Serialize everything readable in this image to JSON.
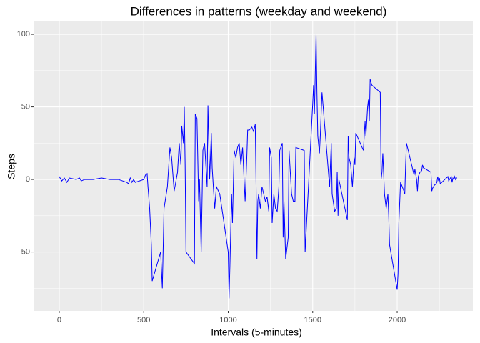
{
  "chart_data": {
    "type": "line",
    "title": "Differences in patterns (weekday and weekend)",
    "x_label": "Intervals (5-minutes)",
    "y_label": "Steps",
    "x": [
      0,
      15,
      30,
      45,
      60,
      100,
      120,
      130,
      150,
      200,
      250,
      300,
      350,
      400,
      410,
      420,
      430,
      440,
      450,
      500,
      510,
      520,
      525,
      535,
      545,
      550,
      600,
      610,
      620,
      640,
      655,
      665,
      680,
      700,
      710,
      720,
      725,
      735,
      740,
      745,
      750,
      800,
      805,
      815,
      825,
      830,
      840,
      850,
      860,
      875,
      880,
      890,
      900,
      905,
      920,
      930,
      950,
      1000,
      1005,
      1010,
      1020,
      1025,
      1035,
      1045,
      1055,
      1065,
      1075,
      1085,
      1100,
      1110,
      1115,
      1125,
      1140,
      1150,
      1160,
      1165,
      1170,
      1175,
      1180,
      1190,
      1200,
      1210,
      1220,
      1230,
      1240,
      1245,
      1255,
      1260,
      1270,
      1280,
      1290,
      1300,
      1305,
      1320,
      1325,
      1330,
      1340,
      1355,
      1360,
      1375,
      1385,
      1395,
      1400,
      1450,
      1455,
      1500,
      1505,
      1510,
      1520,
      1525,
      1530,
      1540,
      1545,
      1555,
      1600,
      1610,
      1615,
      1630,
      1640,
      1645,
      1650,
      1655,
      1705,
      1710,
      1715,
      1725,
      1735,
      1745,
      1750,
      1755,
      1800,
      1810,
      1815,
      1825,
      1830,
      1835,
      1840,
      1850,
      1900,
      1905,
      1910,
      1915,
      1925,
      1935,
      1945,
      1950,
      1955,
      2000,
      2005,
      2010,
      2020,
      2030,
      2040,
      2045,
      2050,
      2055,
      2100,
      2105,
      2115,
      2120,
      2125,
      2135,
      2145,
      2150,
      2155,
      2200,
      2205,
      2210,
      2220,
      2230,
      2235,
      2240,
      2245,
      2250,
      2255,
      2300,
      2305,
      2310,
      2320,
      2325,
      2330,
      2335,
      2340,
      2345,
      2350,
      2355
    ],
    "series": [
      {
        "color": "#0000ff",
        "values": [
          2,
          -1,
          1,
          -2,
          1,
          0,
          1,
          -1,
          0,
          0,
          1,
          0,
          0,
          -2,
          -3,
          1,
          -2,
          0,
          -2,
          0,
          3,
          4,
          -5,
          -20,
          -45,
          -70,
          -50,
          -75,
          -20,
          -5,
          22,
          15,
          -8,
          5,
          25,
          10,
          37,
          25,
          50,
          10,
          -50,
          -58,
          45,
          42,
          -15,
          0,
          -50,
          20,
          25,
          -5,
          51,
          0,
          32,
          8,
          -20,
          -5,
          -10,
          -50,
          -82,
          -60,
          -10,
          -30,
          20,
          15,
          22,
          25,
          10,
          22,
          -15,
          15,
          34,
          34,
          36,
          33,
          38,
          -5,
          -55,
          -15,
          -10,
          -20,
          -5,
          -10,
          -15,
          -12,
          -22,
          22,
          15,
          -30,
          -10,
          -20,
          -22,
          -5,
          20,
          25,
          -40,
          -15,
          -55,
          -40,
          20,
          -10,
          -15,
          -15,
          22,
          20,
          -50,
          52,
          65,
          45,
          100,
          60,
          30,
          18,
          30,
          60,
          -5,
          25,
          -10,
          -22,
          -20,
          5,
          -25,
          0,
          -28,
          30,
          15,
          10,
          -5,
          15,
          10,
          32,
          20,
          40,
          30,
          50,
          55,
          40,
          69,
          65,
          60,
          0,
          5,
          18,
          -10,
          -20,
          -10,
          -25,
          -45,
          -76,
          -65,
          -30,
          -2,
          -5,
          -8,
          -10,
          10,
          25,
          3,
          7,
          0,
          -8,
          2,
          5,
          6,
          10,
          8,
          5,
          -8,
          -6,
          -4,
          -3,
          -2,
          2,
          -1,
          1,
          -3,
          2,
          -1,
          0,
          2,
          -2,
          1,
          0,
          2,
          0,
          1,
          1
        ]
      }
    ],
    "xlim": [
      -152,
      2448
    ],
    "xticks": [
      0,
      500,
      1000,
      1500,
      2000
    ],
    "ylim": [
      -90.6,
      108.9
    ],
    "yticks": [
      -50,
      0,
      50,
      100
    ],
    "grid": true
  }
}
